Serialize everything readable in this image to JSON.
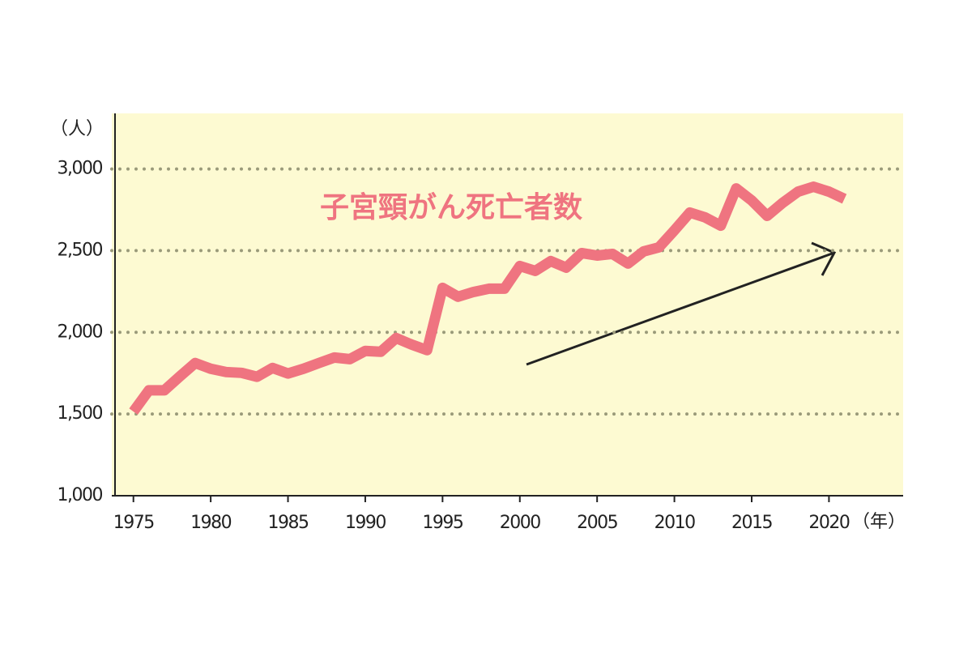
{
  "chart_data": {
    "type": "line",
    "y_label": "（人）",
    "x_label": "（年）",
    "x": [
      1975,
      1976,
      1977,
      1978,
      1979,
      1980,
      1981,
      1982,
      1983,
      1984,
      1985,
      1986,
      1987,
      1988,
      1989,
      1990,
      1991,
      1992,
      1993,
      1994,
      1995,
      1996,
      1997,
      1998,
      1999,
      2000,
      2001,
      2002,
      2003,
      2004,
      2005,
      2006,
      2007,
      2008,
      2009,
      2010,
      2011,
      2012,
      2013,
      2014,
      2015,
      2016,
      2017,
      2018,
      2019,
      2020,
      2021
    ],
    "series": [
      {
        "name": "子宮頸がん死亡者数",
        "color": "#ef7480",
        "values": [
          1515,
          1645,
          1645,
          1730,
          1812,
          1777,
          1757,
          1752,
          1728,
          1782,
          1748,
          1777,
          1812,
          1846,
          1836,
          1886,
          1881,
          1965,
          1925,
          1891,
          2272,
          2218,
          2247,
          2267,
          2267,
          2406,
          2376,
          2436,
          2396,
          2485,
          2470,
          2480,
          2421,
          2495,
          2520,
          2624,
          2733,
          2703,
          2653,
          2881,
          2807,
          2713,
          2792,
          2861,
          2891,
          2861,
          2817
        ]
      }
    ],
    "xlim": [
      1973.6,
      2024.8
    ],
    "ylim": [
      1000,
      3340
    ],
    "xticks": [
      1975,
      1980,
      1985,
      1990,
      1995,
      2000,
      2005,
      2010,
      2015,
      2020
    ],
    "yticks": [
      {
        "value": 1000,
        "label": "1,000"
      },
      {
        "value": 1500,
        "label": "1,500"
      },
      {
        "value": 2000,
        "label": "2,000"
      },
      {
        "value": 2500,
        "label": "2,500"
      },
      {
        "value": 3000,
        "label": "3,000"
      }
    ],
    "grid": true,
    "plot_background": "#fdfad2"
  }
}
